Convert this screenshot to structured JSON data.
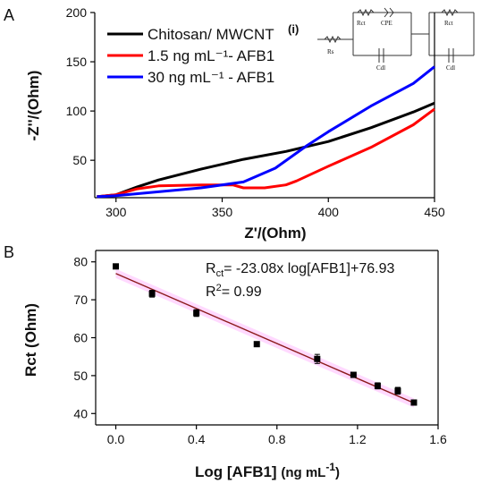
{
  "chart_data": [
    {
      "panel_label": "A",
      "type": "line",
      "xlabel": "Z'/(Ohm)",
      "ylabel": "-Z''/(Ohm)",
      "xlim": [
        290,
        450
      ],
      "ylim": [
        12,
        200
      ],
      "xticks": [
        300,
        350,
        400,
        450
      ],
      "yticks": [
        50,
        100,
        150,
        200
      ],
      "legend_position": "top-left",
      "series": [
        {
          "name": "Chitosan/ MWCNT",
          "color": "#000000",
          "x": [
            291,
            300,
            310,
            320,
            340,
            360,
            380,
            400,
            420,
            440,
            450
          ],
          "y": [
            13,
            15,
            23,
            30,
            41,
            51,
            59,
            69,
            83,
            99,
            108
          ]
        },
        {
          "name": "1.5 ng mL⁻¹- AFB1",
          "color": "#ff0000",
          "x": [
            291,
            300,
            310,
            320,
            340,
            355,
            360,
            370,
            380,
            385,
            390,
            400,
            420,
            440,
            450
          ],
          "y": [
            13,
            15,
            21,
            24,
            25,
            25,
            22,
            22,
            25,
            29,
            34,
            44,
            63,
            86,
            102
          ]
        },
        {
          "name": "30 ng mL⁻¹ - AFB1",
          "color": "#0000ff",
          "x": [
            291,
            300,
            320,
            340,
            360,
            375,
            390,
            400,
            420,
            440,
            450
          ],
          "y": [
            13,
            14,
            18,
            22,
            28,
            42,
            65,
            79,
            105,
            128,
            145
          ]
        }
      ],
      "inset": {
        "label": "(i)",
        "components": [
          "Rs",
          "Rct",
          "CPE",
          "Cdl",
          "Rct",
          "Cdl"
        ]
      }
    },
    {
      "panel_label": "B",
      "type": "scatter",
      "xlabel_main": "Log [AFB1] ",
      "xlabel_unit_pre": "(ng mL",
      "xlabel_unit_sup": "-1",
      "xlabel_unit_post": ")",
      "ylabel": "Rct (Ohm)",
      "xlim": [
        -0.1,
        1.6
      ],
      "ylim": [
        37,
        83
      ],
      "xticks": [
        "0.0",
        "0.4",
        "0.8",
        "1.2",
        "1.6"
      ],
      "yticks": [
        "40",
        "50",
        "60",
        "70",
        "80"
      ],
      "points": {
        "x": [
          0.0,
          0.18,
          0.4,
          0.7,
          1.0,
          1.18,
          1.3,
          1.4,
          1.48
        ],
        "y": [
          78.8,
          71.6,
          66.5,
          58.3,
          54.4,
          50.2,
          47.3,
          46.0,
          42.9
        ],
        "err": [
          0.5,
          0.9,
          0.9,
          0.6,
          1.2,
          0.5,
          0.8,
          0.9,
          0.6
        ]
      },
      "fit": {
        "slope": -23.08,
        "intercept": 76.93,
        "color": "#8b1a1a",
        "band_color": "#ff66ff"
      },
      "equation": {
        "r_main": "R",
        "r_sub": "ct",
        "rest": "= -23.08x log[AFB1]+76.93",
        "r2_main": "R",
        "r2_sup": "2",
        "r2_rest": "= 0.99"
      }
    }
  ]
}
